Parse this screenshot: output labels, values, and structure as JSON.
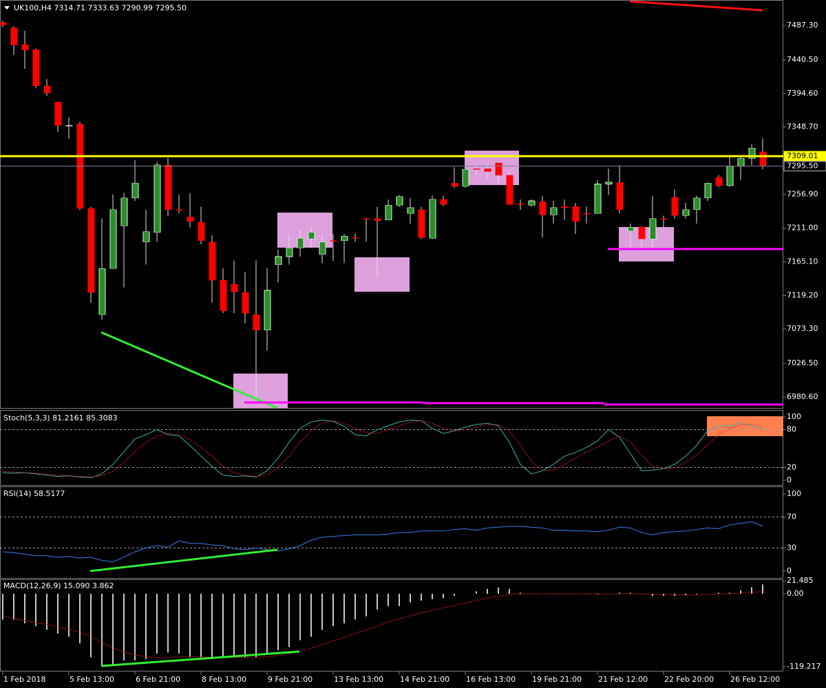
{
  "chart_data": [
    {
      "type": "candlestick",
      "title": "UK100,H4  7314.71 7333.63 7290.99 7295.50",
      "categories": [
        "1 Feb 2018",
        null,
        null,
        null,
        null,
        null,
        "5 Feb 13:00",
        null,
        null,
        null,
        null,
        null,
        "6 Feb 21:00",
        null,
        null,
        null,
        null,
        null,
        "8 Feb 13:00",
        null,
        null,
        null,
        null,
        null,
        "9 Feb 21:00",
        null,
        null,
        null,
        null,
        null,
        "13 Feb 13:00",
        null,
        null,
        null,
        null,
        null,
        "14 Feb 21:00",
        null,
        null,
        null,
        null,
        null,
        "16 Feb 13:00",
        null,
        null,
        null,
        null,
        null,
        "19 Feb 21:00",
        null,
        null,
        null,
        null,
        null,
        "21 Feb 12:00",
        null,
        null,
        null,
        null,
        null,
        "22 Feb 20:00",
        null,
        null,
        null,
        null,
        null,
        "26 Feb 12:00",
        null,
        null,
        null
      ],
      "open": [
        7491,
        7484,
        7461,
        7454,
        7405,
        7383,
        7351,
        7353,
        7238,
        7093,
        7156,
        7214,
        7252,
        7192,
        7205,
        7297,
        7236,
        7226,
        7219,
        7192,
        7140,
        7134,
        7123,
        7093,
        7072,
        7161,
        7172,
        7184,
        7196,
        7175,
        7194,
        7194,
        7198,
        7224,
        7224,
        7222,
        7242,
        7231,
        7236,
        7197,
        7250,
        7272,
        7268,
        7292,
        7292,
        7300,
        7283,
        7244,
        7242,
        7247,
        7229,
        7240,
        7240,
        7231,
        7231,
        7271,
        7273,
        7207,
        7212,
        7196,
        7224,
        7253,
        7228,
        7236,
        7252,
        7280,
        7269,
        7295,
        7306,
        7314.71
      ],
      "high": [
        7494,
        7486,
        7480,
        7456,
        7414,
        7383,
        7362,
        7356,
        7240,
        7224,
        7257,
        7259,
        7304,
        7236,
        7301,
        7306,
        7257,
        7259,
        7240,
        7201,
        7156,
        7167,
        7151,
        7167,
        7156,
        7182,
        7203,
        7208,
        7212,
        7203,
        7203,
        7203,
        7203,
        7225,
        7240,
        7250,
        7256,
        7252,
        7240,
        7255,
        7255,
        7294,
        7291,
        7299,
        7297,
        7302,
        7287,
        7250,
        7250,
        7255,
        7248,
        7250,
        7245,
        7240,
        7276,
        7292,
        7297,
        7217,
        7214,
        7255,
        7228,
        7264,
        7245,
        7255,
        7274,
        7283,
        7311,
        7310,
        7325,
        7333.63
      ],
      "low": [
        7485,
        7447,
        7428,
        7402,
        7391,
        7342,
        7333,
        7236,
        7109,
        7086,
        7156,
        7130,
        7248,
        7161,
        7192,
        7227,
        7231,
        7212,
        7189,
        7109,
        7095,
        7095,
        7081,
        6978,
        7044,
        7137,
        7161,
        7172,
        7184,
        7163,
        7166,
        7163,
        7192,
        7192,
        7142,
        7222,
        7240,
        7217,
        7196,
        7196,
        7241,
        7266,
        7266,
        7283,
        7278,
        7271,
        7243,
        7236,
        7240,
        7198,
        7217,
        7222,
        7203,
        7217,
        7231,
        7256,
        7231,
        7184,
        7184,
        7184,
        7212,
        7224,
        7224,
        7217,
        7248,
        7267,
        7267,
        7276,
        7297,
        7290.99
      ],
      "close": [
        7488,
        7461,
        7454,
        7405,
        7395,
        7351,
        7351,
        7238,
        7123,
        7156,
        7236,
        7252,
        7272,
        7206,
        7297,
        7236,
        7235,
        7220,
        7194,
        7140,
        7098,
        7124,
        7095,
        7072,
        7126,
        7172,
        7184,
        7197,
        7205,
        7192,
        7193,
        7200,
        7197,
        7223,
        7221,
        7242,
        7254,
        7239,
        7198,
        7250,
        7243,
        7268,
        7291,
        7291,
        7288,
        7283,
        7243,
        7243,
        7248,
        7229,
        7239,
        7239,
        7220,
        7230,
        7271,
        7274,
        7236,
        7212,
        7196,
        7224,
        7223,
        7228,
        7236,
        7252,
        7272,
        7269,
        7295,
        7306,
        7320,
        7295.5
      ],
      "up_color": "#2e8b2e",
      "down_color": "#ff0000",
      "wick_color": "#e0e0e0",
      "ylim": [
        6965.6,
        7522.0
      ],
      "yticks": [
        {
          "value": 7487.3,
          "label": "7487.30"
        },
        {
          "value": 7440.5,
          "label": "7440.50"
        },
        {
          "value": 7394.6,
          "label": "7394.60"
        },
        {
          "value": 7348.7,
          "label": "7348.70"
        },
        {
          "value": 7256.9,
          "label": "7256.90"
        },
        {
          "value": 7211,
          "label": "7211.00"
        },
        {
          "value": 7165.1,
          "label": "7165.10"
        },
        {
          "value": 7119.2,
          "label": "7119.20"
        },
        {
          "value": 7073.3,
          "label": "7073.30"
        },
        {
          "value": 7026.5,
          "label": "7026.50"
        },
        {
          "value": 6980.6,
          "label": "6980.60"
        }
      ],
      "hlines": [
        {
          "value": 7309.01,
          "label": "7309.01",
          "color": "#ffff00"
        },
        {
          "value": 7295.5,
          "label": "7295.50",
          "color": "#8080a0"
        }
      ]
    },
    {
      "type": "line",
      "title": "Stoch(5,3,3) 81.2161 85.3083",
      "ylim": [
        -7.6,
        108.7
      ],
      "yticks": [
        0,
        20,
        80,
        100
      ],
      "levels": [
        20,
        80
      ],
      "series": [
        {
          "color": "#40b0a8",
          "style": "solid",
          "values": [
            12,
            11,
            12,
            10,
            8,
            6,
            7,
            5,
            4,
            10,
            25,
            45,
            65,
            72,
            80,
            72,
            70,
            55,
            38,
            22,
            8,
            6,
            7,
            5,
            15,
            35,
            60,
            82,
            92,
            95,
            93,
            85,
            72,
            70,
            80,
            86,
            92,
            95,
            94,
            82,
            74,
            78,
            84,
            88,
            90,
            86,
            60,
            25,
            10,
            15,
            25,
            38,
            44,
            52,
            62,
            80,
            68,
            42,
            15,
            16,
            18,
            25,
            38,
            55,
            78,
            86,
            86,
            90,
            86,
            81.2161
          ]
        },
        {
          "color": "#ff2020",
          "style": "dotted",
          "values": [
            14,
            13,
            12,
            11,
            10,
            8,
            7,
            6,
            5,
            7,
            14,
            28,
            45,
            60,
            70,
            74,
            72,
            64,
            52,
            38,
            22,
            12,
            8,
            6,
            9,
            20,
            38,
            60,
            78,
            90,
            94,
            90,
            82,
            75,
            74,
            80,
            86,
            92,
            94,
            90,
            82,
            78,
            80,
            84,
            88,
            88,
            78,
            55,
            30,
            15,
            16,
            25,
            35,
            45,
            52,
            62,
            70,
            60,
            40,
            22,
            18,
            20,
            28,
            40,
            56,
            72,
            82,
            88,
            88,
            85.3083
          ]
        }
      ]
    },
    {
      "type": "line",
      "title": "RSI(14) 58.5177",
      "ylim": [
        -8.8,
        108
      ],
      "yticks": [
        0,
        30,
        70,
        100
      ],
      "levels": [
        30,
        70
      ],
      "series": [
        {
          "color": "#3a7ff0",
          "style": "solid",
          "values": [
            25,
            24,
            22,
            20,
            20,
            18,
            19,
            17,
            18,
            14,
            12,
            18,
            25,
            30,
            33,
            31,
            39,
            36,
            36,
            34,
            33,
            29,
            28,
            30,
            28,
            26,
            29,
            33,
            40,
            44,
            45,
            46,
            47,
            47,
            47,
            48,
            50,
            50,
            52,
            52,
            52,
            54,
            55,
            53,
            56,
            57,
            58,
            58,
            57,
            56,
            53,
            53,
            52,
            52,
            51,
            53,
            57,
            56,
            50,
            47,
            50,
            51,
            52,
            54,
            56,
            55,
            60,
            62,
            64,
            58.5177
          ]
        }
      ]
    },
    {
      "type": "line",
      "title": "MACD(12,26,9) 15.090 3.862",
      "ylim": [
        -125.9,
        21.485
      ],
      "yticks": [
        21.485,
        {
          "value": 0,
          "label": "0.00"
        },
        -119.217
      ],
      "series": [
        {
          "color": "#c8c8c8",
          "style": "histogram",
          "values": [
            -42,
            -42,
            -48,
            -53,
            -59,
            -65,
            -70,
            -81,
            -104,
            -118,
            -115,
            -109,
            -109,
            -107,
            -98,
            -96,
            -98,
            -104,
            -104,
            -107,
            -104,
            -104,
            -104,
            -104,
            -98,
            -92,
            -87,
            -76,
            -70,
            -59,
            -53,
            -48,
            -42,
            -37,
            -26,
            -20,
            -20,
            -14,
            -11,
            -9,
            -7,
            -3,
            0,
            4,
            8,
            10,
            8,
            2,
            0,
            0,
            0,
            0,
            0,
            0,
            -1,
            0,
            2,
            2,
            0,
            -3,
            -3,
            -3,
            -2,
            -1,
            0,
            2,
            2,
            6,
            11,
            15.09
          ]
        },
        {
          "color": "#ff2020",
          "style": "dotted",
          "values": [
            -36,
            -40,
            -44,
            -47,
            -50,
            -54,
            -58,
            -63,
            -70,
            -80,
            -88,
            -95,
            -100,
            -103,
            -104,
            -104,
            -103,
            -103,
            -103,
            -104,
            -104,
            -104,
            -104,
            -104,
            -103,
            -101,
            -98,
            -94,
            -89,
            -83,
            -77,
            -71,
            -65,
            -59,
            -53,
            -46,
            -41,
            -36,
            -31,
            -27,
            -23,
            -19,
            -15,
            -11,
            -7,
            -4,
            -1,
            0,
            0,
            0,
            0,
            0,
            0,
            0,
            0,
            -1,
            0,
            0,
            0,
            -1,
            -1,
            -2,
            -2,
            -2,
            -1,
            0,
            0,
            1,
            2,
            3.862
          ]
        }
      ]
    }
  ]
}
